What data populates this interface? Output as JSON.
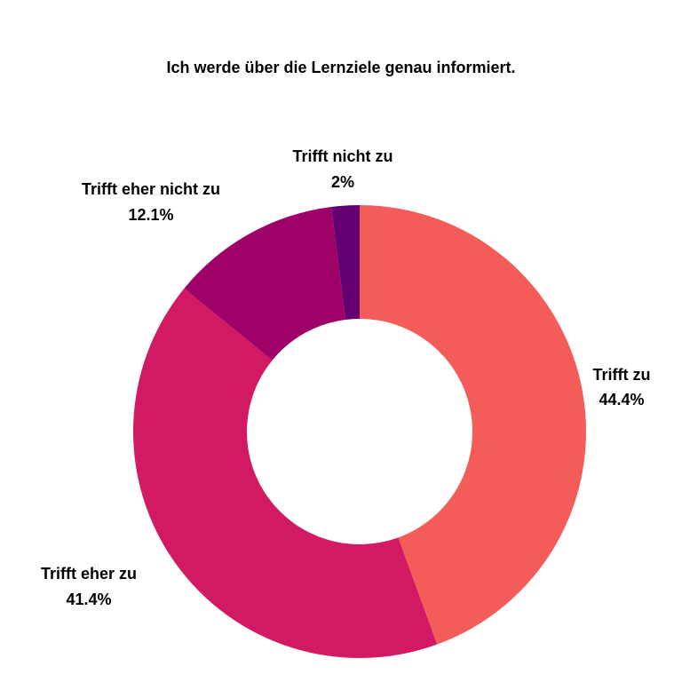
{
  "chart_data": {
    "type": "pie",
    "variant": "donut",
    "title": "Ich werde über die Lernziele genau informiert.",
    "slices": [
      {
        "label": "Trifft zu",
        "value": 44.4,
        "value_label": "44.4%",
        "color": "#F45C5A"
      },
      {
        "label": "Trifft eher zu",
        "value": 41.4,
        "value_label": "41.4%",
        "color": "#D21A63"
      },
      {
        "label": "Trifft eher nicht zu",
        "value": 12.1,
        "value_label": "12.1%",
        "color": "#9E0168"
      },
      {
        "label": "Trifft nicht zu",
        "value": 2,
        "value_label": "2%",
        "color": "#650072"
      }
    ],
    "start": "top, clockwise",
    "legend": "none"
  }
}
